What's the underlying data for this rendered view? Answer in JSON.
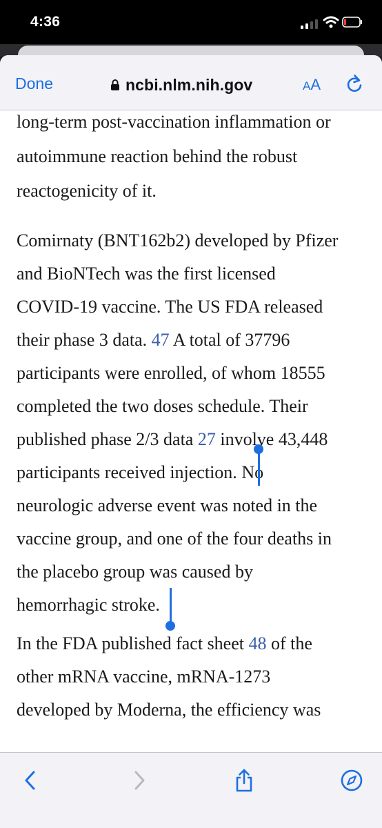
{
  "status_bar": {
    "time": "4:36",
    "icons": [
      "signal-icon",
      "wifi-icon",
      "battery-icon"
    ]
  },
  "browser": {
    "done_label": "Done",
    "url": "ncbi.nlm.nih.gov",
    "text_size_small": "A",
    "text_size_large": "A",
    "icons": [
      "lock-icon",
      "reload-icon"
    ]
  },
  "article": {
    "para1": {
      "lines": [
        "long-term post-vaccination inflammation or",
        "autoimmune reaction behind the robust",
        "reactogenicity of it."
      ]
    },
    "para2": {
      "l1": "Comirnaty (BNT162b2) developed by Pfizer",
      "l2": "and BioNTech was the first licensed",
      "l3": "COVID-19 vaccine. The US FDA released",
      "l4_a": "their phase 3 data. ",
      "l4_ref": "47",
      "l4_b": " A total of 37796",
      "l5": "participants were enrolled, of whom 18555",
      "l6": "completed the two doses schedule. Their",
      "l7_a": "published phase 2/3 data ",
      "l7_ref": "27",
      "l7_b": " involve 43,448",
      "l8_a": "participants received injection. ",
      "l8_sel": "No",
      "l9": "neurologic adverse event was noted in the",
      "l10": "vaccine group, and one of the four deaths in",
      "l11": "the placebo group was caused by",
      "l12": "hemorrhagic stroke."
    },
    "para3": {
      "l1_a": "In the FDA published fact sheet ",
      "l1_ref": "48",
      "l1_b": " of the",
      "l2": "other mRNA vaccine, mRNA-1273",
      "l3": "developed by Moderna, the efficiency was"
    }
  },
  "toolbar": {
    "icons": [
      "back-icon",
      "forward-icon",
      "share-icon",
      "compass-icon"
    ]
  },
  "colors": {
    "accent": "#1d6fe0",
    "selection": "#cfe2f8",
    "link": "#3b5ea8"
  }
}
